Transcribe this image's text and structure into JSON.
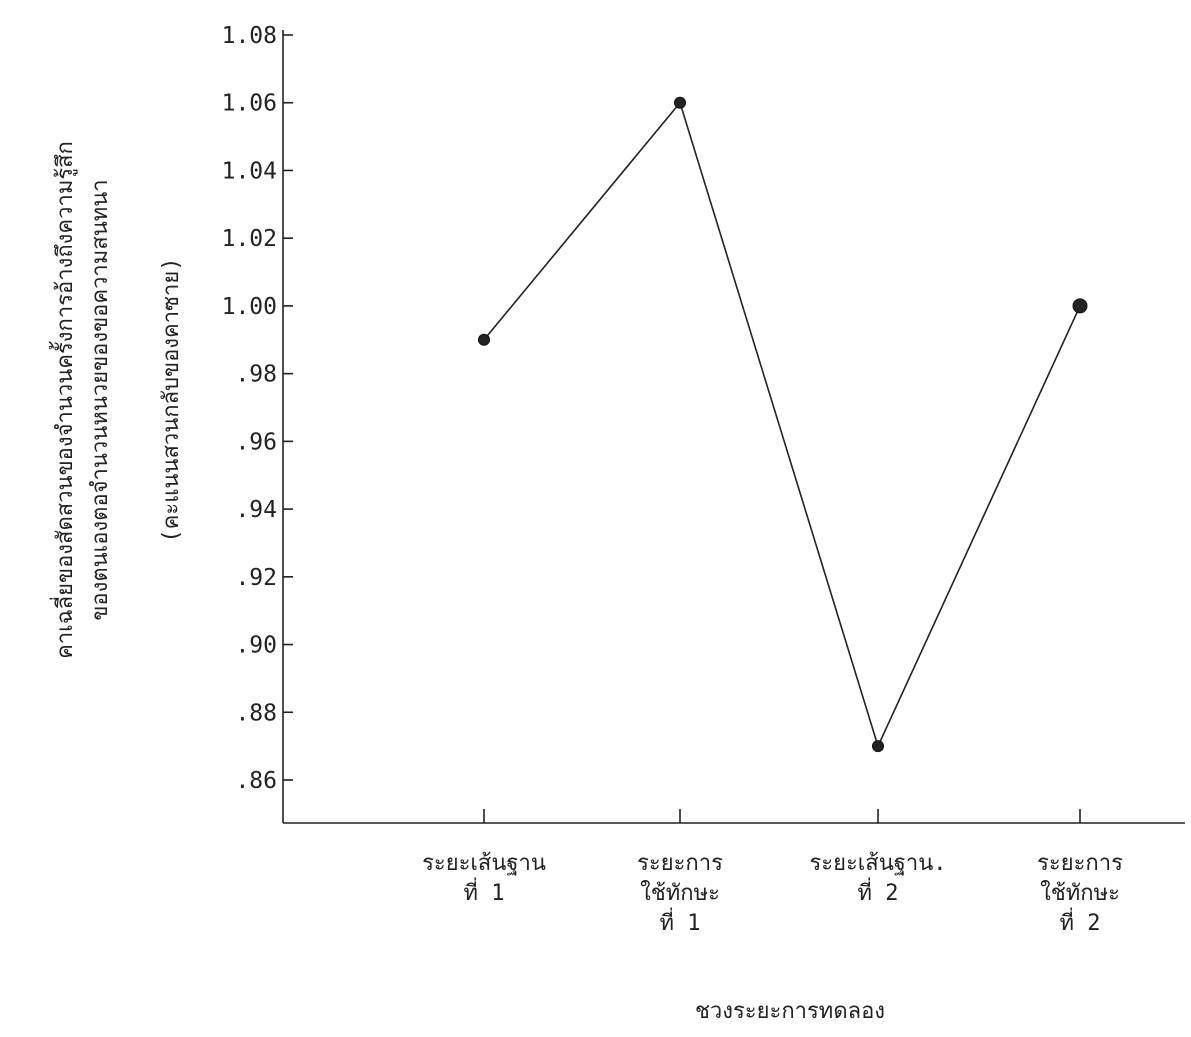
{
  "chart_data": {
    "type": "line",
    "title": "",
    "xlabel": "ชวงระยะการทดลอง",
    "ylabel": [
      "คาเฉลี่ยของสัดสวนของจำนวนครั้งการอ้างถึงความรู้สึก",
      "ของตนเองตอจำนวนหนวยของขอความสนทนา",
      "(คะแนนสวนกลับของคาซาย)"
    ],
    "categories": [
      [
        "ระยะเส้นฐาน",
        "ที่ 1"
      ],
      [
        "ระยะการ",
        "ใช้ทักษะ",
        "ที่ 1"
      ],
      [
        "ระยะเส้นฐาน.",
        "ที่ 2"
      ],
      [
        "ระยะการ",
        "ใช้ทักษะ",
        "ที่ 2"
      ]
    ],
    "values": [
      0.99,
      1.06,
      0.87,
      1.0
    ],
    "yticks": [
      0.86,
      0.88,
      0.9,
      0.92,
      0.94,
      0.96,
      0.98,
      1.0,
      1.02,
      1.04,
      1.06,
      1.08
    ],
    "ytick_labels": [
      ".86",
      ".88",
      ".90",
      ".92",
      ".94",
      ".96",
      ".98",
      "1.00",
      "1.02",
      "1.04",
      "1.06",
      "1.08"
    ],
    "ylim": [
      0.85,
      1.08
    ],
    "grid": false,
    "legend": "none",
    "line_color": "#222222"
  }
}
